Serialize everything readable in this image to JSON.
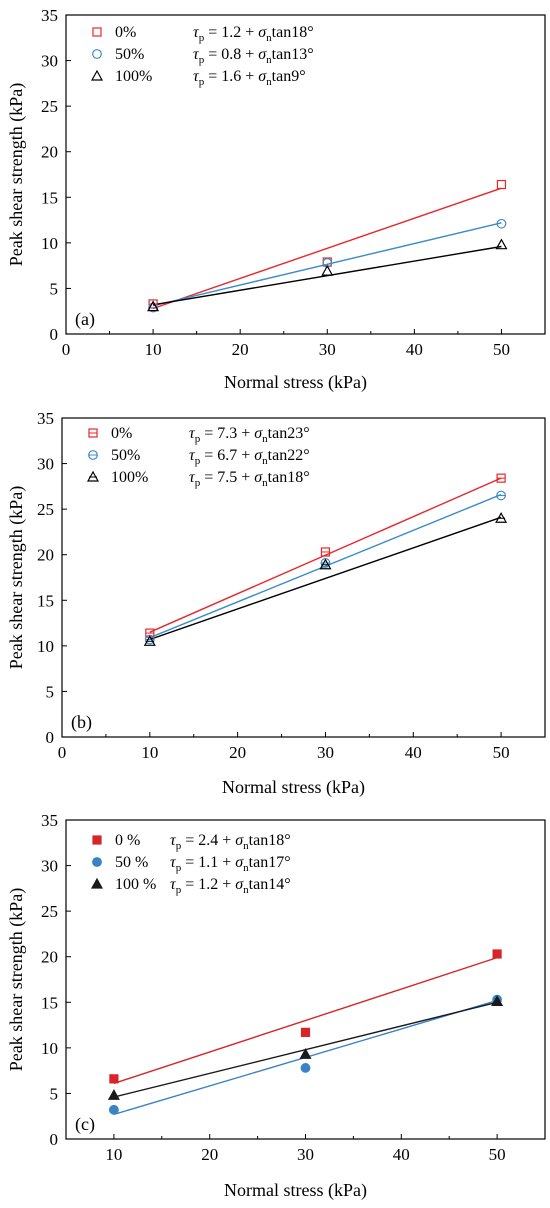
{
  "chart_data": [
    {
      "type": "scatter",
      "panel_label": "(a)",
      "xlabel": "Normal stress (kPa)",
      "ylabel": "Peak shear strength (kPa)",
      "xlim": [
        0,
        55
      ],
      "ylim": [
        0,
        35
      ],
      "xticks": [
        0,
        10,
        20,
        30,
        40,
        50
      ],
      "yticks": [
        0,
        5,
        10,
        15,
        20,
        25,
        30,
        35
      ],
      "legend_position": "top-left",
      "marker_fill": "hollow",
      "series": [
        {
          "name": "0%",
          "color": "#e8262b",
          "marker": "square",
          "x": [
            10,
            30,
            50
          ],
          "y": [
            3.3,
            7.9,
            16.4
          ],
          "fit": {
            "c": 1.2,
            "phi": 18,
            "x_range": [
              10,
              50
            ],
            "y_range": [
              2.8,
              16.0
            ]
          }
        },
        {
          "name": "50%",
          "color": "#3b8bc9",
          "marker": "circle",
          "x": [
            10,
            30,
            50
          ],
          "y": [
            2.9,
            7.8,
            12.1
          ],
          "fit": {
            "c": 0.8,
            "phi": 13,
            "x_range": [
              10,
              50
            ],
            "y_range": [
              3.1,
              12.2
            ]
          }
        },
        {
          "name": "100%",
          "color": "#000000",
          "marker": "triangle",
          "x": [
            10,
            30,
            50
          ],
          "y": [
            3.0,
            6.9,
            9.8
          ],
          "fit": {
            "c": 1.6,
            "phi": 9,
            "x_range": [
              10,
              50
            ],
            "y_range": [
              3.2,
              9.6
            ]
          }
        }
      ],
      "equations": [
        {
          "lhs": "τ",
          "lhs_sub": "p",
          "mid": " = 1.2 + σ",
          "mid_sub": "n",
          "rhs": "tan18°"
        },
        {
          "lhs": "τ",
          "lhs_sub": "p",
          "mid": " = 0.8 + σ",
          "mid_sub": "n",
          "rhs": "tan13°"
        },
        {
          "lhs": "τ",
          "lhs_sub": "p",
          "mid": " = 1.6 + σ",
          "mid_sub": "n",
          "rhs": "tan9°"
        }
      ]
    },
    {
      "type": "scatter",
      "panel_label": "(b)",
      "xlabel": "Normal stress (kPa)",
      "ylabel": "Peak shear strength (kPa)",
      "xlim": [
        0,
        55
      ],
      "ylim": [
        0,
        35
      ],
      "xticks": [
        0,
        10,
        20,
        30,
        40,
        50
      ],
      "yticks": [
        0,
        5,
        10,
        15,
        20,
        25,
        30,
        35
      ],
      "legend_position": "top-left",
      "marker_fill": "hollow-dash",
      "series": [
        {
          "name": "0%",
          "color": "#e8262b",
          "marker": "square",
          "x": [
            10,
            30,
            50
          ],
          "y": [
            11.4,
            20.3,
            28.4
          ],
          "fit": {
            "c": 7.3,
            "phi": 23,
            "x_range": [
              10,
              50
            ],
            "y_range": [
              11.5,
              28.4
            ]
          }
        },
        {
          "name": "50%",
          "color": "#3b8bc9",
          "marker": "circle",
          "x": [
            10,
            30,
            50
          ],
          "y": [
            10.7,
            19.1,
            26.5
          ],
          "fit": {
            "c": 6.7,
            "phi": 22,
            "x_range": [
              10,
              50
            ],
            "y_range": [
              10.9,
              26.6
            ]
          }
        },
        {
          "name": "100%",
          "color": "#000000",
          "marker": "triangle",
          "x": [
            10,
            30,
            50
          ],
          "y": [
            10.5,
            18.9,
            24.0
          ],
          "fit": {
            "c": 7.5,
            "phi": 18,
            "x_range": [
              10,
              50
            ],
            "y_range": [
              10.7,
              24.1
            ]
          }
        }
      ],
      "equations": [
        {
          "lhs": "τ",
          "lhs_sub": "p",
          "mid": " = 7.3 + σ",
          "mid_sub": "n",
          "rhs": "tan23°"
        },
        {
          "lhs": "τ",
          "lhs_sub": "p",
          "mid": " = 6.7 + σ",
          "mid_sub": "n",
          "rhs": "tan22°"
        },
        {
          "lhs": "τ",
          "lhs_sub": "p",
          "mid": " = 7.5 + σ",
          "mid_sub": "n",
          "rhs": "tan18°"
        }
      ]
    },
    {
      "type": "scatter",
      "panel_label": "(c)",
      "xlabel": "Normal stress (kPa)",
      "ylabel": "Peak shear strength (kPa)",
      "xlim": [
        5,
        55
      ],
      "ylim": [
        0,
        35
      ],
      "xticks": [
        10,
        20,
        30,
        40,
        50
      ],
      "yticks": [
        0,
        5,
        10,
        15,
        20,
        25,
        30,
        35
      ],
      "legend_position": "top-left",
      "marker_fill": "solid",
      "series": [
        {
          "name": "0 %",
          "color": "#d6252a",
          "marker": "square",
          "x": [
            10,
            30,
            50
          ],
          "y": [
            6.6,
            11.7,
            20.3
          ],
          "fit": {
            "c": 2.4,
            "phi": 18,
            "x_range": [
              10,
              50
            ],
            "y_range": [
              6.1,
              19.9
            ]
          }
        },
        {
          "name": "50 %",
          "color": "#3a83c4",
          "marker": "circle",
          "x": [
            10,
            30,
            50
          ],
          "y": [
            3.2,
            7.8,
            15.3
          ],
          "fit": {
            "c": 1.1,
            "phi": 17,
            "x_range": [
              10,
              50
            ],
            "y_range": [
              2.7,
              15.2
            ]
          }
        },
        {
          "name": "100 %",
          "color": "#1a1a1a",
          "marker": "triangle",
          "x": [
            10,
            30,
            50
          ],
          "y": [
            4.8,
            9.3,
            15.1
          ],
          "fit": {
            "c": 1.2,
            "phi": 14,
            "x_range": [
              10,
              50
            ],
            "y_range": [
              4.6,
              15.0
            ]
          }
        }
      ],
      "equations": [
        {
          "lhs": "τ",
          "lhs_sub": "p",
          "mid": " = 2.4 + σ",
          "mid_sub": "n",
          "rhs": "tan18°"
        },
        {
          "lhs": "τ",
          "lhs_sub": "p",
          "mid": " = 1.1 + σ",
          "mid_sub": "n",
          "rhs": "tan17°"
        },
        {
          "lhs": "τ",
          "lhs_sub": "p",
          "mid": " = 1.2 + σ",
          "mid_sub": "n",
          "rhs": "tan14°"
        }
      ]
    }
  ]
}
